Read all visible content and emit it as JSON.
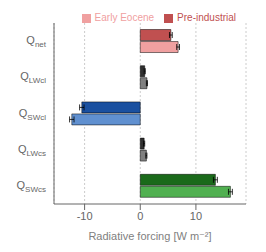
{
  "chart_data": {
    "type": "bar",
    "orientation": "horizontal",
    "categories": [
      "Qnet",
      "QLWcl",
      "QSWcl",
      "QLWcs",
      "QSWcs"
    ],
    "series": [
      {
        "name": "Pre-industrial",
        "color": "#c05050",
        "colors": [
          "#c05050",
          "#303030",
          "#1a50a0",
          "#303030",
          "#1a6a1a"
        ],
        "values": [
          5.5,
          0.8,
          -10.5,
          0.7,
          13.5
        ],
        "errors": [
          0.25,
          0.1,
          0.4,
          0.1,
          0.35
        ]
      },
      {
        "name": "Early Eocene",
        "color": "#f0a0a0",
        "colors": [
          "#f0a0a0",
          "#808080",
          "#6090d0",
          "#808080",
          "#50b050"
        ],
        "values": [
          6.8,
          1.2,
          -12.3,
          1.1,
          16.2
        ],
        "errors": [
          0.25,
          0.1,
          0.4,
          0.1,
          0.35
        ]
      }
    ],
    "xlabel": "Radiative forcing [W m⁻²]",
    "xlim": [
      -15.5,
      19
    ],
    "xticks": [
      -10,
      0,
      10
    ],
    "grid": true,
    "legend": "upper right"
  }
}
